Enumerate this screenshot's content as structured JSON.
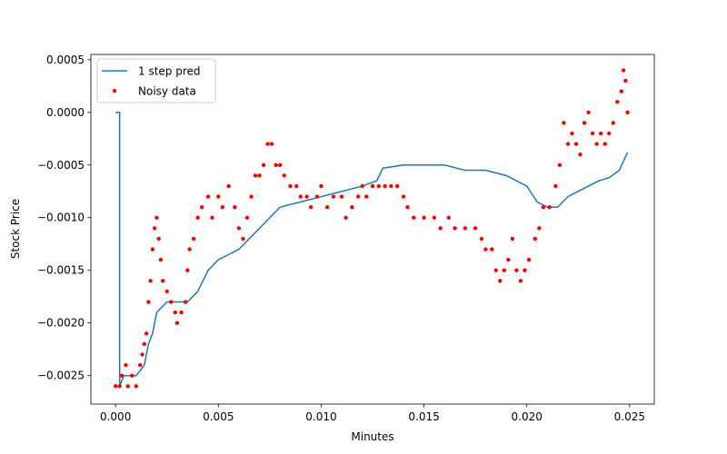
{
  "chart_data": {
    "type": "line",
    "xlabel": "Minutes",
    "ylabel": "Stock Price",
    "xlim": [
      -0.0012,
      0.0262
    ],
    "ylim": [
      -0.00277,
      0.00055
    ],
    "xticks": [
      {
        "value": 0,
        "label": "0.000"
      },
      {
        "value": 0.005,
        "label": "0.005"
      },
      {
        "value": 0.01,
        "label": "0.010"
      },
      {
        "value": 0.015,
        "label": "0.015"
      },
      {
        "value": 0.02,
        "label": "0.020"
      },
      {
        "value": 0.025,
        "label": "0.025"
      }
    ],
    "yticks": [
      {
        "value": 0.0005,
        "label": "0.0005"
      },
      {
        "value": 0,
        "label": "0.0000"
      },
      {
        "value": -0.0005,
        "label": "−0.0005"
      },
      {
        "value": -0.001,
        "label": "−0.0010"
      },
      {
        "value": -0.0015,
        "label": "−0.0015"
      },
      {
        "value": -0.002,
        "label": "−0.0020"
      },
      {
        "value": -0.0025,
        "label": "−0.0025"
      }
    ],
    "grid": false,
    "legend": "upper left",
    "series": [
      {
        "name": "1 step pred",
        "type": "line",
        "color": "#1f77b4",
        "x": [
          0.0,
          0.0002,
          0.0002,
          0.0004,
          0.001,
          0.0014,
          0.0016,
          0.0018,
          0.002,
          0.0025,
          0.0035,
          0.004,
          0.0045,
          0.005,
          0.006,
          0.007,
          0.008,
          0.009,
          0.01,
          0.011,
          0.012,
          0.0127,
          0.013,
          0.014,
          0.016,
          0.017,
          0.018,
          0.019,
          0.02,
          0.0205,
          0.021,
          0.0215,
          0.022,
          0.023,
          0.0235,
          0.024,
          0.0245,
          0.0249
        ],
        "values": [
          0.0,
          0.0,
          -0.0026,
          -0.0025,
          -0.0025,
          -0.0024,
          -0.0022,
          -0.0021,
          -0.0019,
          -0.0018,
          -0.0018,
          -0.0017,
          -0.0015,
          -0.0014,
          -0.0013,
          -0.0011,
          -0.0009,
          -0.00085,
          -0.0008,
          -0.00075,
          -0.0007,
          -0.00065,
          -0.00053,
          -0.0005,
          -0.0005,
          -0.00055,
          -0.00055,
          -0.0006,
          -0.0007,
          -0.00085,
          -0.0009,
          -0.0009,
          -0.0008,
          -0.0007,
          -0.00065,
          -0.00062,
          -0.00055,
          -0.00038
        ]
      },
      {
        "name": "Noisy data",
        "type": "scatter",
        "color": "#ff0000",
        "x": [
          0.0,
          0.0002,
          0.0003,
          0.0005,
          0.0006,
          0.0008,
          0.001,
          0.0012,
          0.0013,
          0.0014,
          0.0015,
          0.0016,
          0.0017,
          0.0018,
          0.0019,
          0.002,
          0.0021,
          0.0022,
          0.0023,
          0.0025,
          0.0027,
          0.0029,
          0.003,
          0.0032,
          0.0034,
          0.0035,
          0.0036,
          0.0038,
          0.004,
          0.0042,
          0.0045,
          0.0047,
          0.005,
          0.0052,
          0.0055,
          0.0058,
          0.006,
          0.0062,
          0.0064,
          0.0066,
          0.0068,
          0.007,
          0.0072,
          0.0074,
          0.0076,
          0.0078,
          0.008,
          0.0082,
          0.0085,
          0.0088,
          0.009,
          0.0093,
          0.0095,
          0.0098,
          0.01,
          0.0103,
          0.0106,
          0.011,
          0.0112,
          0.0115,
          0.0118,
          0.012,
          0.0122,
          0.0125,
          0.0128,
          0.0131,
          0.0134,
          0.0137,
          0.014,
          0.0142,
          0.0145,
          0.015,
          0.0155,
          0.0158,
          0.0162,
          0.0165,
          0.017,
          0.0175,
          0.0178,
          0.018,
          0.0183,
          0.0185,
          0.0187,
          0.0189,
          0.0191,
          0.0193,
          0.0195,
          0.0197,
          0.0199,
          0.0201,
          0.0204,
          0.0206,
          0.0208,
          0.0211,
          0.0214,
          0.0216,
          0.0218,
          0.022,
          0.0222,
          0.0224,
          0.0226,
          0.0228,
          0.023,
          0.0232,
          0.0234,
          0.0236,
          0.0238,
          0.024,
          0.0242,
          0.0244,
          0.0246,
          0.0247,
          0.0248,
          0.0249
        ],
        "values": [
          -0.0026,
          -0.0026,
          -0.0025,
          -0.0024,
          -0.0026,
          -0.0025,
          -0.0026,
          -0.0024,
          -0.0023,
          -0.0022,
          -0.0021,
          -0.0018,
          -0.0016,
          -0.0013,
          -0.0011,
          -0.001,
          -0.0012,
          -0.0014,
          -0.0016,
          -0.0017,
          -0.0018,
          -0.0019,
          -0.002,
          -0.0019,
          -0.0018,
          -0.0015,
          -0.0013,
          -0.0012,
          -0.001,
          -0.0009,
          -0.0008,
          -0.001,
          -0.0008,
          -0.0009,
          -0.0007,
          -0.0009,
          -0.0011,
          -0.0012,
          -0.001,
          -0.0008,
          -0.0006,
          -0.0006,
          -0.0005,
          -0.0003,
          -0.0003,
          -0.0005,
          -0.0005,
          -0.0006,
          -0.0007,
          -0.0007,
          -0.0008,
          -0.0008,
          -0.0009,
          -0.0008,
          -0.0007,
          -0.0009,
          -0.0008,
          -0.0008,
          -0.001,
          -0.0009,
          -0.0008,
          -0.0007,
          -0.0008,
          -0.0007,
          -0.0007,
          -0.0007,
          -0.0007,
          -0.0007,
          -0.0008,
          -0.0009,
          -0.001,
          -0.001,
          -0.001,
          -0.0011,
          -0.001,
          -0.0011,
          -0.0011,
          -0.0011,
          -0.0012,
          -0.0013,
          -0.0013,
          -0.0015,
          -0.0016,
          -0.0015,
          -0.0014,
          -0.0012,
          -0.0015,
          -0.0016,
          -0.0015,
          -0.0014,
          -0.0012,
          -0.0011,
          -0.0009,
          -0.0009,
          -0.0007,
          -0.0005,
          -0.0001,
          -0.0003,
          -0.0002,
          -0.0003,
          -0.0004,
          -0.0001,
          0.0,
          -0.0002,
          -0.0003,
          -0.0002,
          -0.0003,
          -0.0002,
          -0.0001,
          0.0001,
          0.0002,
          0.0004,
          0.0003,
          0.0
        ]
      }
    ]
  }
}
